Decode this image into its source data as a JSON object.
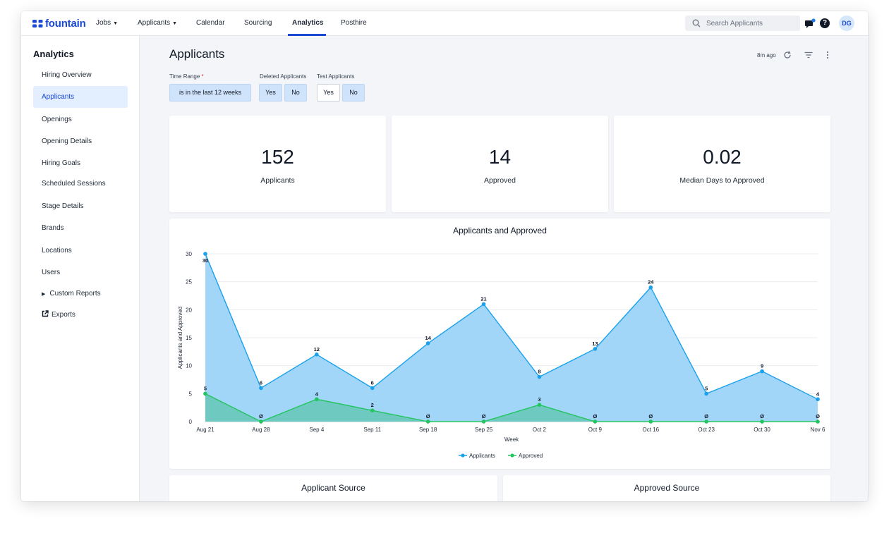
{
  "brand": {
    "name": "fountain"
  },
  "nav": {
    "items": [
      {
        "label": "Jobs",
        "dropdown": true
      },
      {
        "label": "Applicants",
        "dropdown": true
      },
      {
        "label": "Calendar",
        "dropdown": false
      },
      {
        "label": "Sourcing",
        "dropdown": false
      },
      {
        "label": "Analytics",
        "dropdown": false,
        "active": true
      },
      {
        "label": "Posthire",
        "dropdown": false
      }
    ],
    "search_placeholder": "Search Applicants",
    "avatar_initials": "DG",
    "help_glyph": "?"
  },
  "sidebar": {
    "title": "Analytics",
    "items": [
      {
        "label": "Hiring Overview"
      },
      {
        "label": "Applicants",
        "active": true
      },
      {
        "label": "Openings"
      },
      {
        "label": "Opening Details"
      },
      {
        "label": "Hiring Goals"
      },
      {
        "label": "Scheduled Sessions"
      },
      {
        "label": "Stage Details"
      },
      {
        "label": "Brands"
      },
      {
        "label": "Locations"
      },
      {
        "label": "Users"
      },
      {
        "label": "Custom Reports",
        "expandable": true
      },
      {
        "label": "Exports",
        "icon": "external-link-icon"
      }
    ]
  },
  "page": {
    "title": "Applicants",
    "last_refreshed": "8m ago"
  },
  "filters": {
    "time_range": {
      "label": "Time Range",
      "required_marker": "*",
      "value": "is in the last 12 weeks"
    },
    "deleted_applicants": {
      "label": "Deleted Applicants",
      "options": [
        "Yes",
        "No"
      ],
      "selected": [
        "Yes",
        "No"
      ]
    },
    "test_applicants": {
      "label": "Test Applicants",
      "options": [
        "Yes",
        "No"
      ],
      "selected": [
        "No"
      ]
    }
  },
  "stats": [
    {
      "value": "152",
      "label": "Applicants"
    },
    {
      "value": "14",
      "label": "Approved"
    },
    {
      "value": "0.02",
      "label": "Median Days to Approved"
    }
  ],
  "chart_data": {
    "type": "area",
    "title": "Applicants and Approved",
    "xlabel": "Week",
    "ylabel": "Applicants and Approved",
    "categories": [
      "Aug 21",
      "Aug 28",
      "Sep 4",
      "Sep 11",
      "Sep 18",
      "Sep 25",
      "Oct 2",
      "Oct 9",
      "Oct 16",
      "Oct 23",
      "Oct 30",
      "Nov 6"
    ],
    "ylim": [
      0,
      30
    ],
    "yticks": [
      0,
      5,
      10,
      15,
      20,
      25,
      30
    ],
    "grid": true,
    "legend": "bottom-center",
    "series": [
      {
        "name": "Applicants",
        "values": [
          30,
          6,
          12,
          6,
          14,
          21,
          8,
          13,
          24,
          5,
          9,
          4
        ],
        "labels": [
          "30",
          "6",
          "12",
          "6",
          "14",
          "21",
          "8",
          "13",
          "24",
          "5",
          "9",
          "4"
        ],
        "color": "#1ba1ec",
        "fill": "#a2d6f8"
      },
      {
        "name": "Approved",
        "values": [
          5,
          0,
          4,
          2,
          0,
          0,
          3,
          0,
          0,
          0,
          0,
          0
        ],
        "labels": [
          "5",
          "Ø",
          "4",
          "2",
          "Ø",
          "Ø",
          "3",
          "Ø",
          "Ø",
          "Ø",
          "Ø",
          "Ø"
        ],
        "color": "#22c55e",
        "fill": "#6cc8bd"
      }
    ]
  },
  "sources": [
    {
      "title": "Applicant Source"
    },
    {
      "title": "Approved Source"
    }
  ],
  "colors": {
    "accent": "#1a4ad4",
    "active_bg": "#e3efff",
    "filter_selected": "#cfe4fb"
  }
}
